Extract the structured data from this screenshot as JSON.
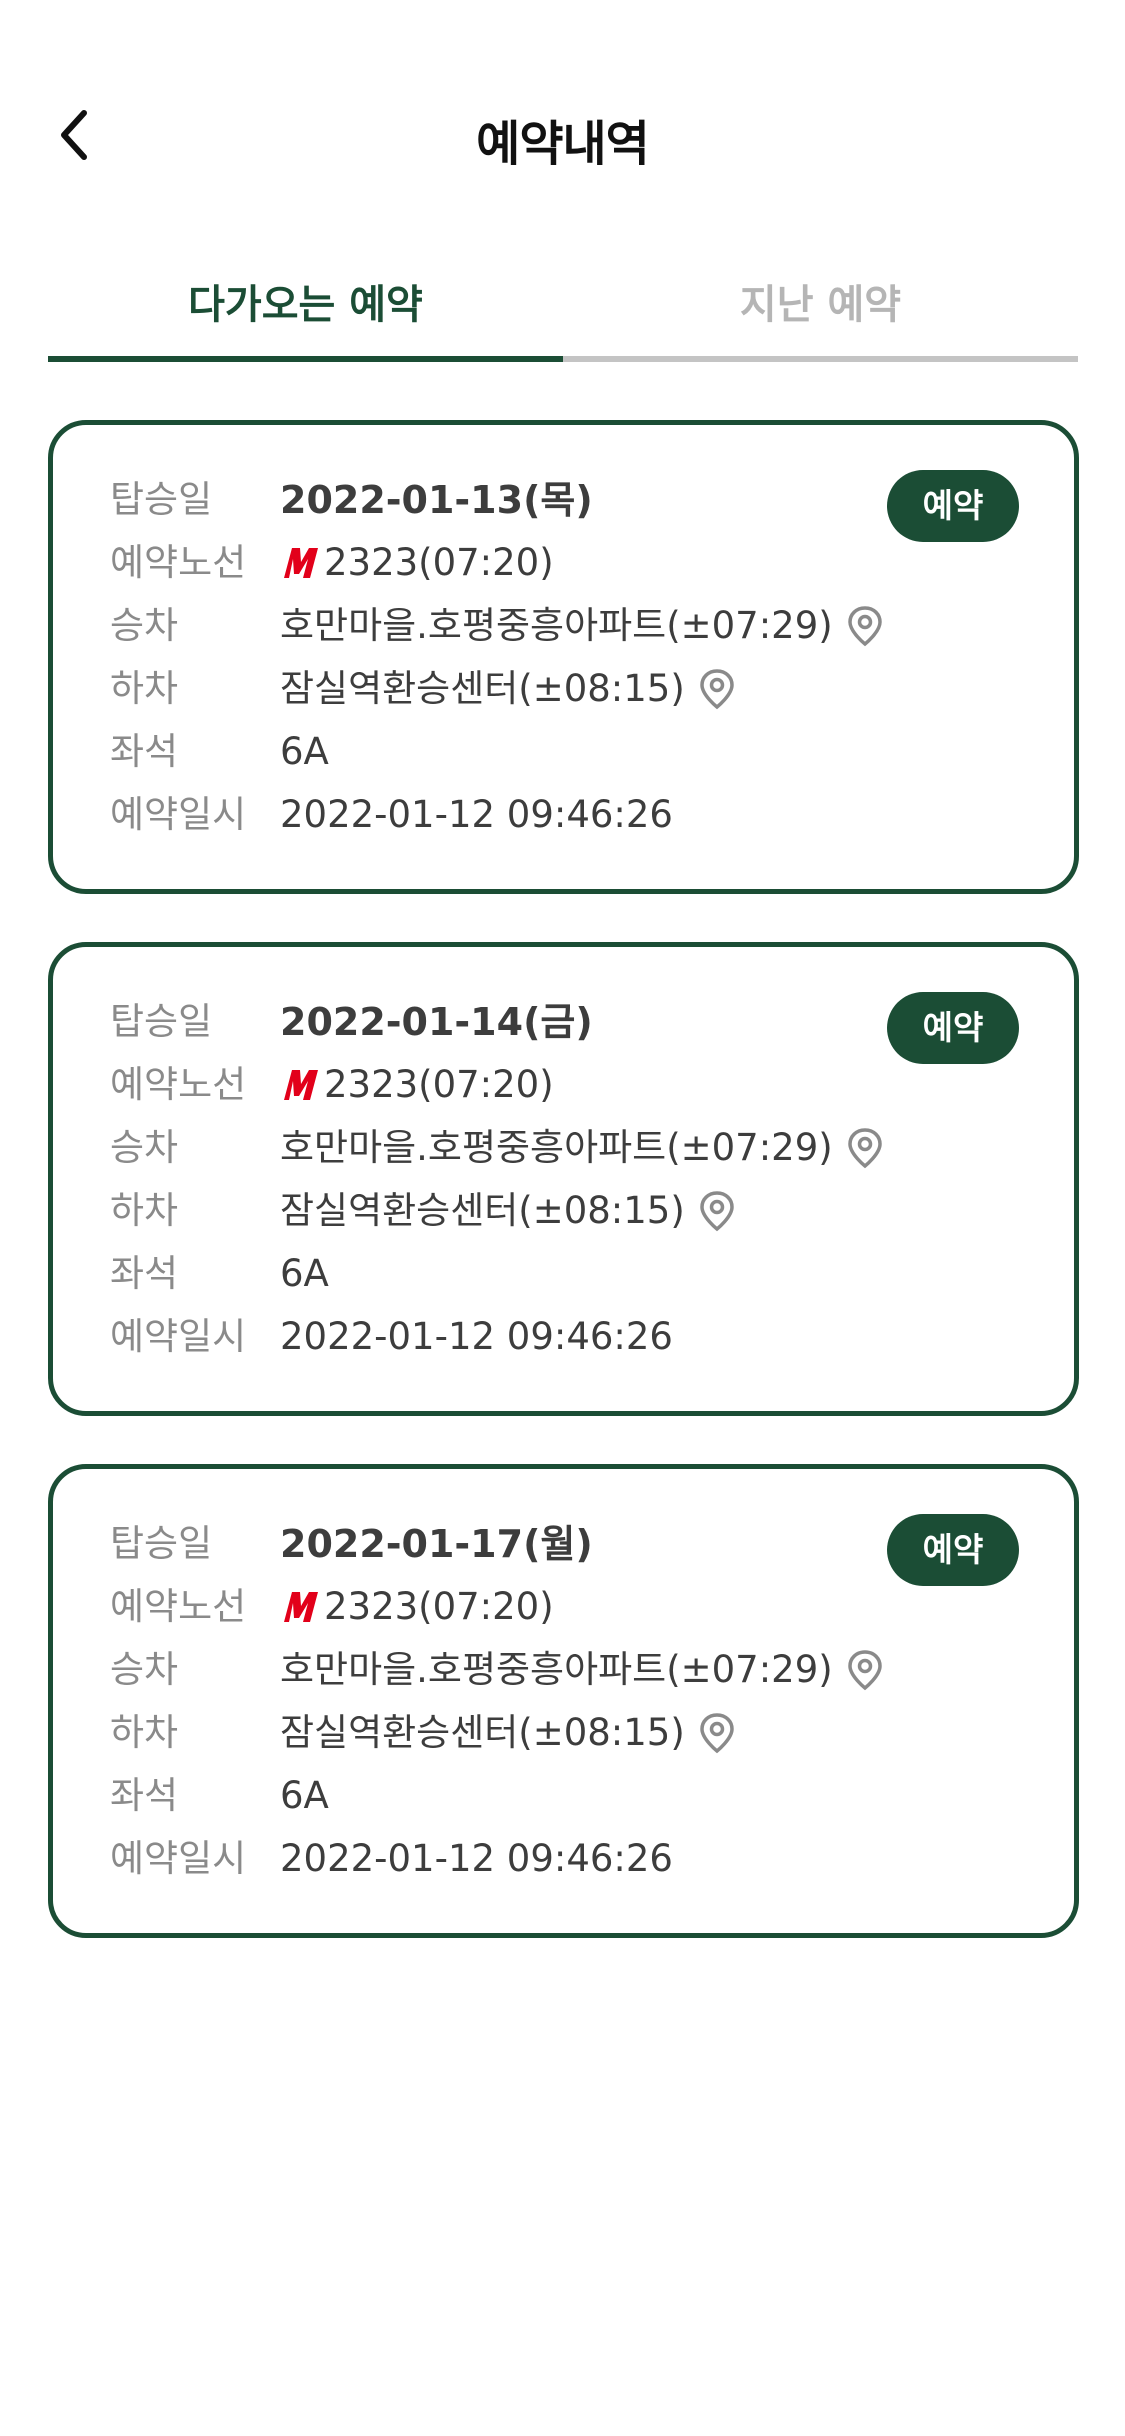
{
  "header": {
    "title": "예약내역",
    "back_icon": "chevron-left-icon"
  },
  "tabs": [
    {
      "label": "다가오는 예약",
      "active": true
    },
    {
      "label": "지난 예약",
      "active": false
    }
  ],
  "labels": {
    "date": "탑승일",
    "route": "예약노선",
    "board": "승차",
    "alight": "하차",
    "seat": "좌석",
    "reserved_at": "예약일시"
  },
  "colors": {
    "accent": "#1b4d35",
    "m_logo": "#e2001a"
  },
  "reservations": [
    {
      "date": "2022-01-13(목)",
      "badge": "예약",
      "route": "2323(07:20)",
      "board": "호만마을.호평중흥아파트(±07:29)",
      "alight": "잠실역환승센터(±08:15)",
      "seat": "6A",
      "reserved_at": "2022-01-12 09:46:26"
    },
    {
      "date": "2022-01-14(금)",
      "badge": "예약",
      "route": "2323(07:20)",
      "board": "호만마을.호평중흥아파트(±07:29)",
      "alight": "잠실역환승센터(±08:15)",
      "seat": "6A",
      "reserved_at": "2022-01-12 09:46:26"
    },
    {
      "date": "2022-01-17(월)",
      "badge": "예약",
      "route": "2323(07:20)",
      "board": "호만마을.호평중흥아파트(±07:29)",
      "alight": "잠실역환승센터(±08:15)",
      "seat": "6A",
      "reserved_at": "2022-01-12 09:46:26"
    }
  ]
}
